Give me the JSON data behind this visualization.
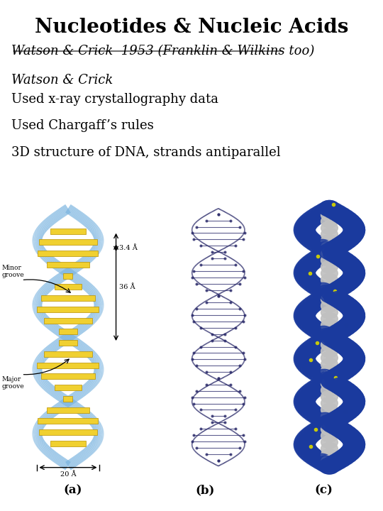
{
  "title": "Nucleotides & Nucleic Acids",
  "subtitle": "Watson & Crick  1953 (Franklin & Wilkins too)",
  "bullet_header": "Watson & Crick",
  "bullets": [
    "Used x-ray crystallography data",
    "Used Chargaff’s rules",
    "3D structure of DNA, strands antiparallel"
  ],
  "label_a": "(a)",
  "label_b": "(b)",
  "label_c": "(c)",
  "background_color": "#ffffff",
  "title_fontsize": 20,
  "subtitle_fontsize": 13,
  "bullet_header_fontsize": 13,
  "bullet_fontsize": 13,
  "label_fontsize": 12,
  "title_color": "#000000",
  "text_color": "#000000",
  "anno_34": "3.4 Å",
  "anno_36": "36 Å",
  "anno_20": "20 Å",
  "minor_groove": "Minor\ngroove",
  "major_groove": "Major\ngroove"
}
